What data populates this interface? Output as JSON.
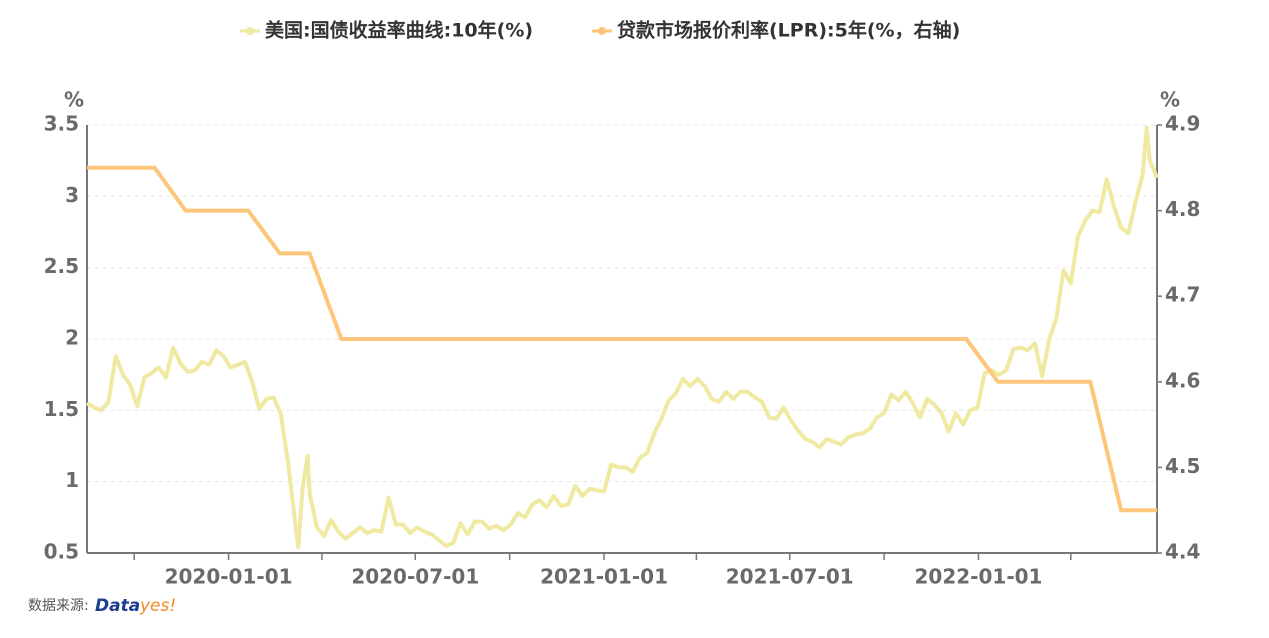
{
  "chart_data": {
    "type": "line",
    "legend_position": "top",
    "y_unit": "%",
    "y2_unit": "%",
    "xlim": [
      "2019-08-16",
      "2022-06-24"
    ],
    "xticks": [
      "2020-01-01",
      "2020-07-01",
      "2021-01-01",
      "2021-07-01",
      "2022-01-01"
    ],
    "x_minor_ticks": [
      "2019-10-01",
      "2020-04-01",
      "2020-10-01",
      "2021-04-01",
      "2021-10-01",
      "2022-04-01"
    ],
    "ylim": [
      0.5,
      3.5
    ],
    "yticks": [
      0.5,
      1,
      1.5,
      2,
      2.5,
      3,
      3.5
    ],
    "y2lim": [
      4.4,
      4.9
    ],
    "y2ticks": [
      4.4,
      4.5,
      4.6,
      4.7,
      4.8,
      4.9
    ],
    "grid": true,
    "series": [
      {
        "name": "美国:国债收益率曲线:10年(%)",
        "color": "#efe9a2",
        "x": [
          "2019-08-16",
          "2019-08-23",
          "2019-08-30",
          "2019-09-06",
          "2019-09-13",
          "2019-09-20",
          "2019-09-27",
          "2019-10-04",
          "2019-10-11",
          "2019-10-18",
          "2019-10-25",
          "2019-11-01",
          "2019-11-08",
          "2019-11-15",
          "2019-11-22",
          "2019-11-29",
          "2019-12-06",
          "2019-12-13",
          "2019-12-20",
          "2019-12-27",
          "2020-01-03",
          "2020-01-10",
          "2020-01-17",
          "2020-01-24",
          "2020-01-31",
          "2020-02-07",
          "2020-02-14",
          "2020-02-21",
          "2020-02-28",
          "2020-03-06",
          "2020-03-09",
          "2020-03-13",
          "2020-03-18",
          "2020-03-20",
          "2020-03-27",
          "2020-04-03",
          "2020-04-10",
          "2020-04-17",
          "2020-04-24",
          "2020-05-01",
          "2020-05-08",
          "2020-05-15",
          "2020-05-22",
          "2020-05-29",
          "2020-06-05",
          "2020-06-12",
          "2020-06-19",
          "2020-06-26",
          "2020-07-03",
          "2020-07-10",
          "2020-07-17",
          "2020-07-24",
          "2020-07-31",
          "2020-08-07",
          "2020-08-14",
          "2020-08-21",
          "2020-08-28",
          "2020-09-04",
          "2020-09-11",
          "2020-09-18",
          "2020-09-25",
          "2020-10-02",
          "2020-10-09",
          "2020-10-16",
          "2020-10-23",
          "2020-10-30",
          "2020-11-06",
          "2020-11-13",
          "2020-11-20",
          "2020-11-27",
          "2020-12-04",
          "2020-12-11",
          "2020-12-18",
          "2020-12-25",
          "2021-01-01",
          "2021-01-08",
          "2021-01-15",
          "2021-01-22",
          "2021-01-29",
          "2021-02-05",
          "2021-02-12",
          "2021-02-19",
          "2021-02-26",
          "2021-03-05",
          "2021-03-12",
          "2021-03-19",
          "2021-03-26",
          "2021-04-02",
          "2021-04-09",
          "2021-04-16",
          "2021-04-23",
          "2021-04-30",
          "2021-05-07",
          "2021-05-14",
          "2021-05-21",
          "2021-05-28",
          "2021-06-04",
          "2021-06-11",
          "2021-06-18",
          "2021-06-25",
          "2021-07-02",
          "2021-07-09",
          "2021-07-16",
          "2021-07-23",
          "2021-07-30",
          "2021-08-06",
          "2021-08-13",
          "2021-08-20",
          "2021-08-27",
          "2021-09-03",
          "2021-09-10",
          "2021-09-17",
          "2021-09-24",
          "2021-10-01",
          "2021-10-08",
          "2021-10-15",
          "2021-10-22",
          "2021-10-29",
          "2021-11-05",
          "2021-11-12",
          "2021-11-19",
          "2021-11-26",
          "2021-12-03",
          "2021-12-10",
          "2021-12-17",
          "2021-12-24",
          "2021-12-31",
          "2022-01-07",
          "2022-01-14",
          "2022-01-21",
          "2022-01-28",
          "2022-02-04",
          "2022-02-11",
          "2022-02-18",
          "2022-02-25",
          "2022-03-04",
          "2022-03-11",
          "2022-03-18",
          "2022-03-25",
          "2022-04-01",
          "2022-04-08",
          "2022-04-15",
          "2022-04-22",
          "2022-04-29",
          "2022-05-06",
          "2022-05-13",
          "2022-05-20",
          "2022-05-27",
          "2022-06-03",
          "2022-06-10",
          "2022-06-14",
          "2022-06-17",
          "2022-06-24"
        ],
        "values": [
          1.55,
          1.52,
          1.5,
          1.56,
          1.88,
          1.75,
          1.68,
          1.53,
          1.73,
          1.76,
          1.8,
          1.73,
          1.94,
          1.83,
          1.77,
          1.78,
          1.84,
          1.82,
          1.92,
          1.88,
          1.8,
          1.82,
          1.84,
          1.7,
          1.51,
          1.58,
          1.59,
          1.47,
          1.13,
          0.71,
          0.54,
          0.94,
          1.18,
          0.92,
          0.68,
          0.62,
          0.73,
          0.65,
          0.6,
          0.64,
          0.68,
          0.64,
          0.66,
          0.65,
          0.89,
          0.7,
          0.7,
          0.64,
          0.68,
          0.65,
          0.63,
          0.59,
          0.55,
          0.57,
          0.71,
          0.63,
          0.72,
          0.72,
          0.67,
          0.69,
          0.66,
          0.7,
          0.78,
          0.75,
          0.84,
          0.87,
          0.82,
          0.9,
          0.83,
          0.84,
          0.97,
          0.9,
          0.95,
          0.94,
          0.93,
          1.12,
          1.1,
          1.1,
          1.07,
          1.17,
          1.2,
          1.34,
          1.44,
          1.57,
          1.62,
          1.72,
          1.67,
          1.72,
          1.67,
          1.58,
          1.56,
          1.63,
          1.58,
          1.63,
          1.63,
          1.59,
          1.56,
          1.45,
          1.44,
          1.52,
          1.43,
          1.36,
          1.3,
          1.28,
          1.24,
          1.3,
          1.28,
          1.26,
          1.31,
          1.33,
          1.34,
          1.37,
          1.45,
          1.48,
          1.61,
          1.57,
          1.63,
          1.55,
          1.45,
          1.58,
          1.54,
          1.48,
          1.35,
          1.48,
          1.4,
          1.5,
          1.52,
          1.76,
          1.78,
          1.75,
          1.78,
          1.93,
          1.94,
          1.92,
          1.97,
          1.74,
          2.0,
          2.15,
          2.48,
          2.39,
          2.72,
          2.83,
          2.9,
          2.89,
          3.12,
          2.93,
          2.78,
          2.74,
          2.96,
          3.15,
          3.48,
          3.25,
          3.13
        ]
      },
      {
        "name": "贷款市场报价利率(LPR):5年(%，右轴)",
        "color": "#fdc67a",
        "axis": "y2",
        "x": [
          "2019-08-16",
          "2019-10-21",
          "2019-11-20",
          "2020-01-20",
          "2020-02-20",
          "2020-03-20",
          "2020-04-20",
          "2021-12-20",
          "2022-01-20",
          "2022-04-20",
          "2022-05-20",
          "2022-06-24"
        ],
        "values": [
          4.85,
          4.85,
          4.8,
          4.8,
          4.75,
          4.75,
          4.65,
          4.65,
          4.6,
          4.6,
          4.45,
          4.45
        ]
      }
    ],
    "source": {
      "label": "数据来源:",
      "logo_part1": "Data",
      "logo_part2": "yes!"
    }
  }
}
